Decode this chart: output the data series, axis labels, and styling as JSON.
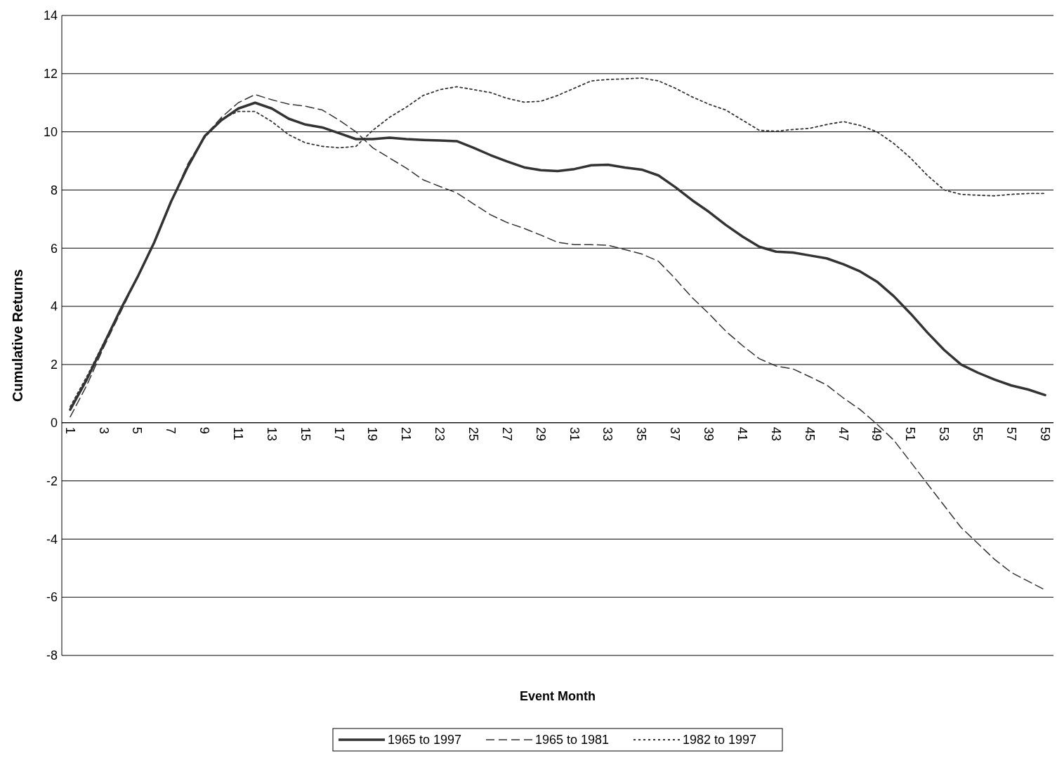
{
  "chart_data": {
    "type": "line",
    "xlabel": "Event Month",
    "ylabel": "Cumulative Returns",
    "categories": [
      "1",
      null,
      "3",
      null,
      "5",
      null,
      "7",
      null,
      "9",
      null,
      "11",
      null,
      "13",
      null,
      "15",
      null,
      "17",
      null,
      "19",
      null,
      "21",
      null,
      "23",
      null,
      "25",
      null,
      "27",
      null,
      "29",
      null,
      "31",
      null,
      "33",
      null,
      "35",
      null,
      "37",
      null,
      "39",
      null,
      "41",
      null,
      "43",
      null,
      "45",
      null,
      "47",
      null,
      "49",
      null,
      "51",
      null,
      "53",
      null,
      "55",
      null,
      "57",
      null,
      "59"
    ],
    "series": [
      {
        "name": "1965 to 1997",
        "color": "#333333",
        "line_style": "solid",
        "values": [
          0.45,
          1.5,
          2.7,
          3.9,
          5.0,
          6.2,
          7.6,
          8.8,
          9.85,
          10.4,
          10.8,
          11.0,
          10.8,
          10.45,
          10.25,
          10.15,
          9.95,
          9.75,
          9.75,
          9.8,
          9.75,
          9.72,
          9.7,
          9.68,
          9.45,
          9.2,
          8.98,
          8.78,
          8.68,
          8.65,
          8.72,
          8.85,
          8.87,
          8.77,
          8.7,
          8.5,
          8.1,
          7.65,
          7.25,
          6.8,
          6.4,
          6.05,
          5.88,
          5.85,
          5.75,
          5.65,
          5.45,
          5.2,
          4.85,
          4.35,
          3.75,
          3.1,
          2.5,
          2.0,
          1.72,
          1.48,
          1.28,
          1.14,
          0.95
        ]
      },
      {
        "name": "1965 to 1981",
        "color": "#333333",
        "line_style": "dashed",
        "values": [
          0.2,
          1.3,
          2.6,
          3.8,
          5.0,
          6.2,
          7.6,
          8.9,
          9.85,
          10.5,
          11.0,
          11.28,
          11.1,
          10.95,
          10.88,
          10.75,
          10.4,
          10.0,
          9.45,
          9.1,
          8.75,
          8.35,
          8.12,
          7.9,
          7.52,
          7.15,
          6.88,
          6.68,
          6.45,
          6.2,
          6.12,
          6.12,
          6.1,
          5.95,
          5.8,
          5.55,
          4.95,
          4.3,
          3.75,
          3.15,
          2.65,
          2.2,
          1.95,
          1.85,
          1.58,
          1.3,
          0.85,
          0.45,
          -0.05,
          -0.6,
          -1.35,
          -2.1,
          -2.85,
          -3.6,
          -4.15,
          -4.7,
          -5.15,
          -5.45,
          -5.75
        ]
      },
      {
        "name": "1982 to 1997",
        "color": "#333333",
        "line_style": "dotted",
        "values": [
          0.55,
          1.6,
          2.75,
          3.9,
          5.0,
          6.2,
          7.6,
          8.85,
          9.8,
          10.45,
          10.7,
          10.7,
          10.35,
          9.9,
          9.62,
          9.5,
          9.45,
          9.5,
          10.05,
          10.5,
          10.85,
          11.25,
          11.45,
          11.55,
          11.45,
          11.35,
          11.15,
          11.02,
          11.05,
          11.25,
          11.5,
          11.75,
          11.8,
          11.82,
          11.85,
          11.75,
          11.5,
          11.2,
          10.95,
          10.75,
          10.4,
          10.05,
          10.02,
          10.08,
          10.12,
          10.25,
          10.35,
          10.22,
          10.0,
          9.6,
          9.1,
          8.5,
          8.0,
          7.85,
          7.82,
          7.8,
          7.85,
          7.88,
          7.88
        ]
      }
    ],
    "ylim": [
      -8,
      14
    ],
    "yticks": [
      -8,
      -6,
      -4,
      -2,
      0,
      2,
      4,
      6,
      8,
      10,
      12,
      14
    ],
    "grid": "y",
    "legend": "bottom",
    "marker": "none"
  }
}
